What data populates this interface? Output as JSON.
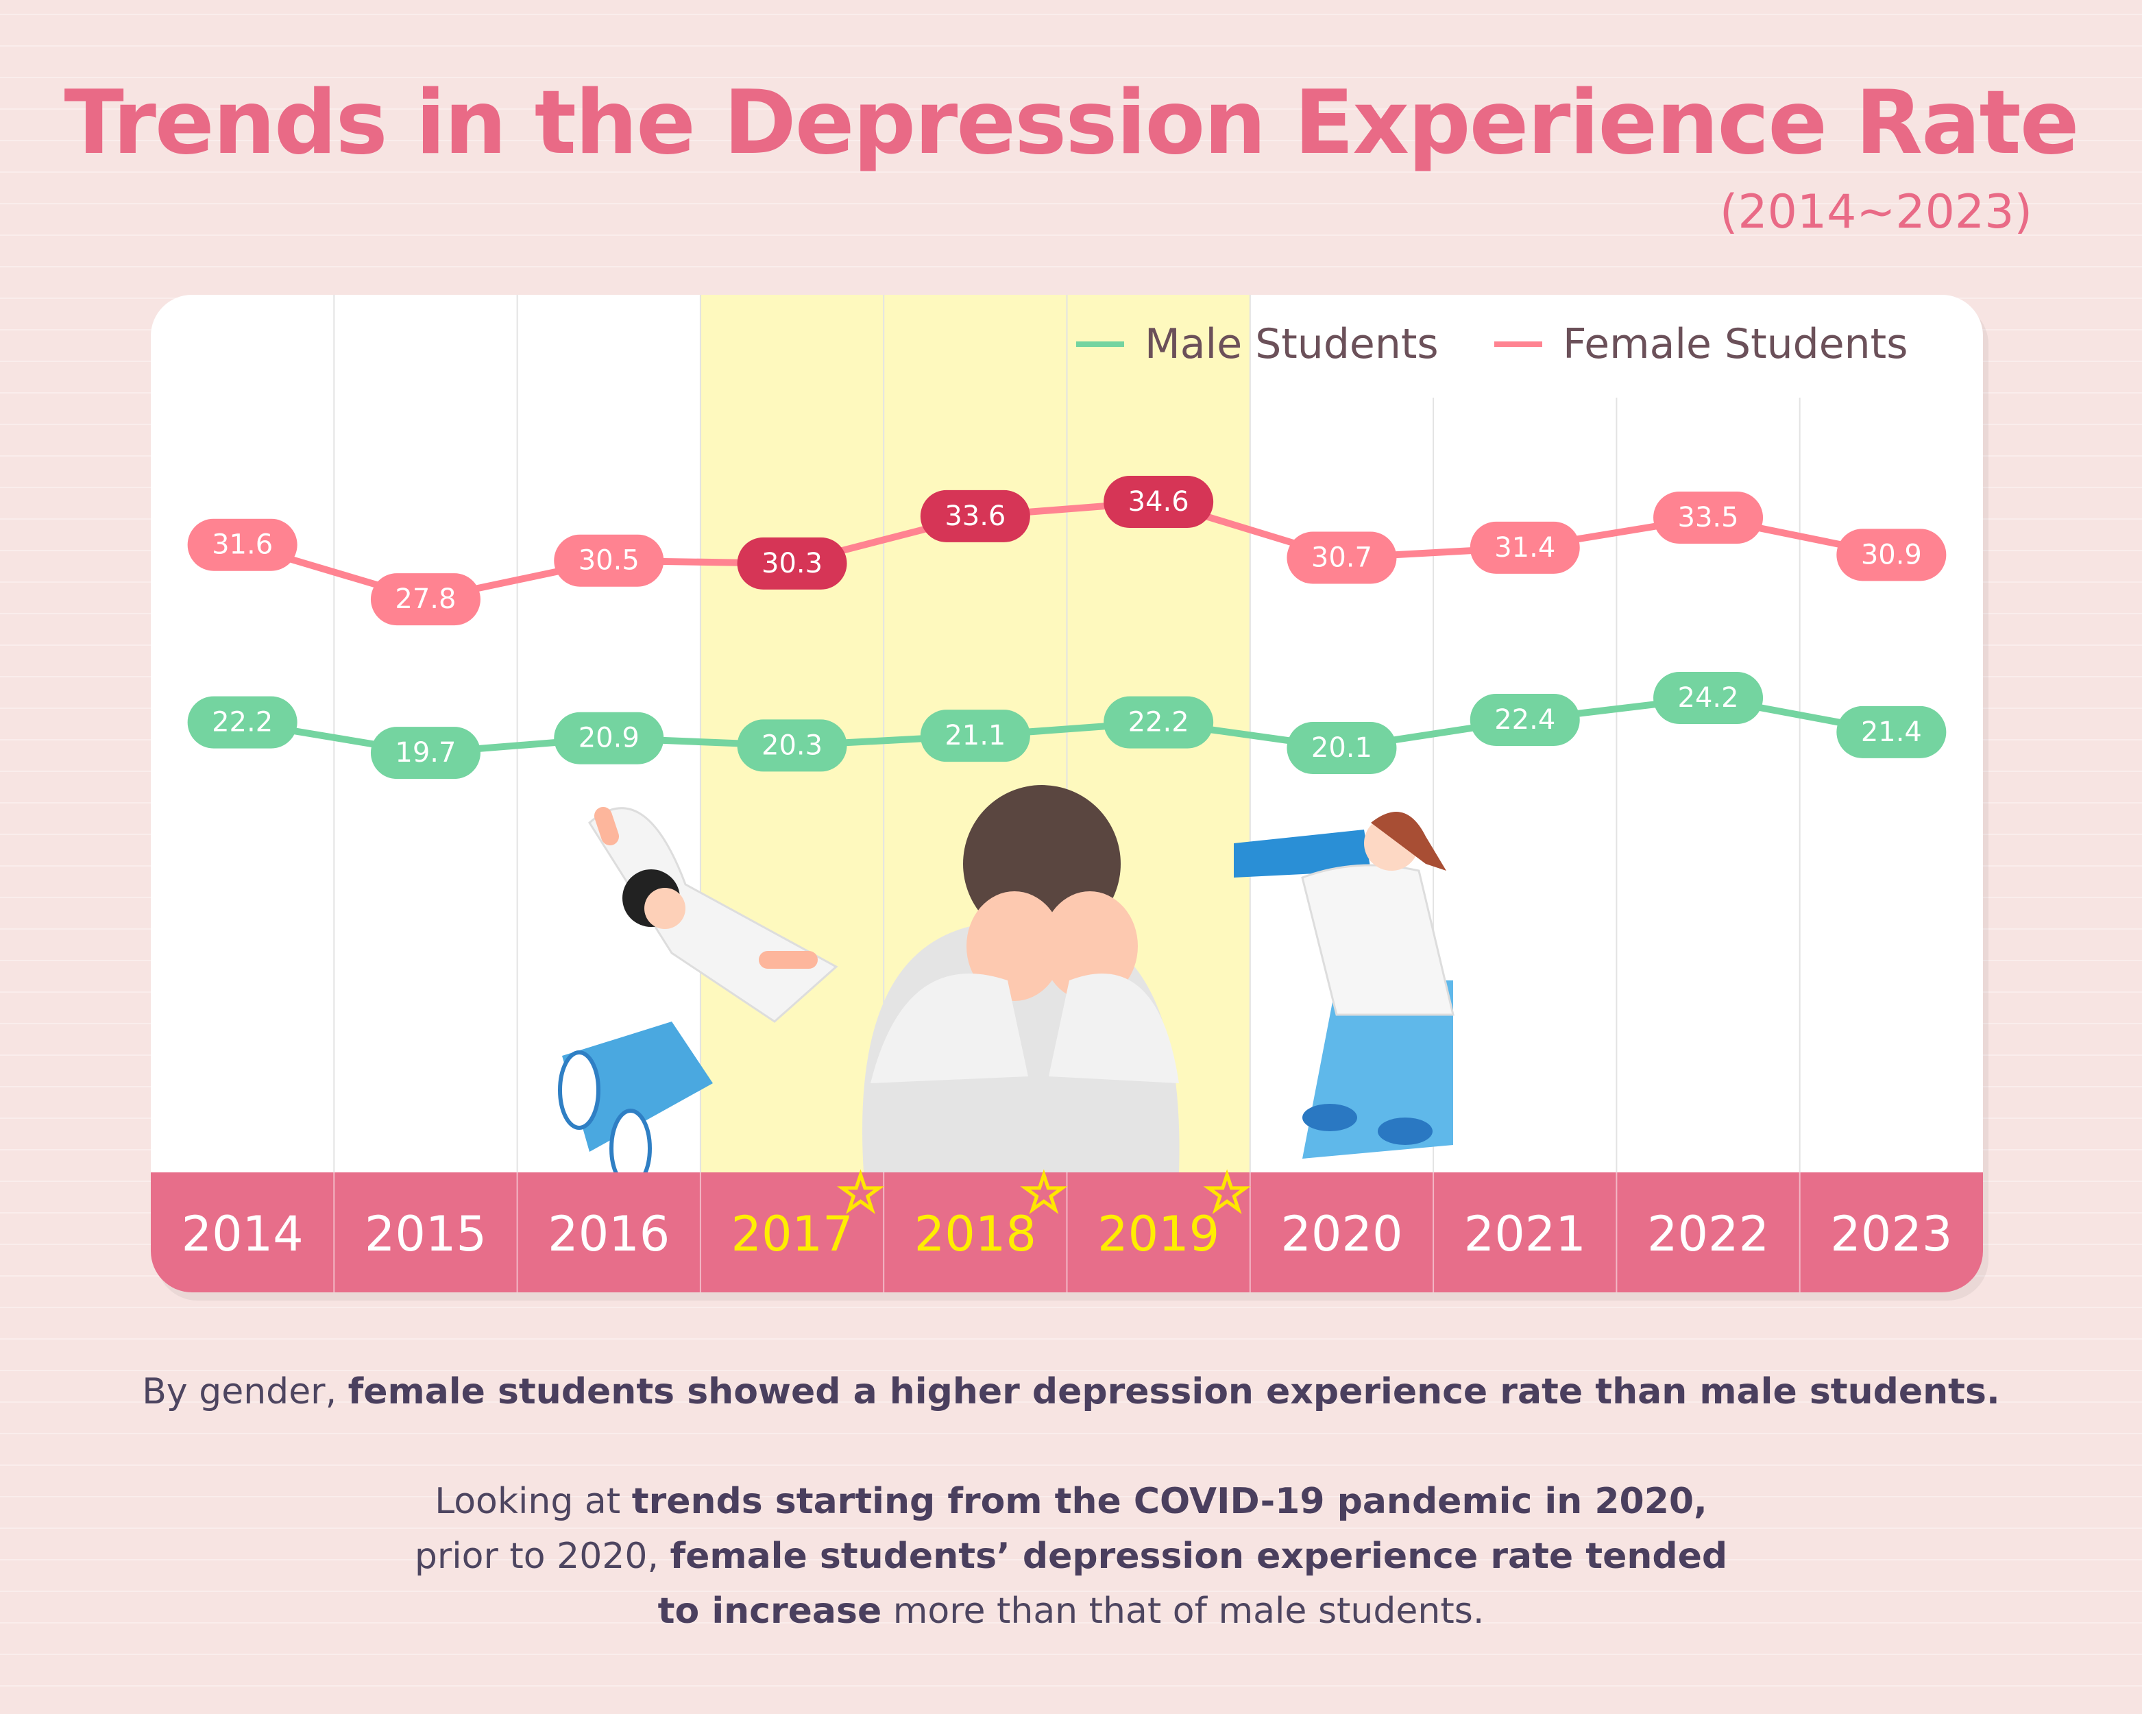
{
  "title": "Trends in the Depression Experience Rate",
  "subtitle": "(2014~2023)",
  "chart_data": {
    "type": "line",
    "title": "Trends in the Depression Experience Rate",
    "subtitle": "(2014~2023)",
    "categories": [
      "2014",
      "2015",
      "2016",
      "2017",
      "2018",
      "2019",
      "2020",
      "2021",
      "2022",
      "2023"
    ],
    "highlighted_categories": [
      "2017",
      "2018",
      "2019"
    ],
    "legend_position": "top-right",
    "series": [
      {
        "name": "Male Students",
        "color": "#74d4a0",
        "values": [
          22.2,
          19.7,
          20.9,
          20.3,
          21.1,
          22.2,
          20.1,
          22.4,
          24.2,
          21.4
        ]
      },
      {
        "name": "Female Students",
        "color": "#ff8391",
        "highlight_color": "#d63556",
        "values": [
          31.6,
          27.8,
          30.5,
          30.3,
          33.6,
          34.6,
          30.7,
          31.4,
          33.5,
          30.9
        ]
      }
    ],
    "grid": true
  },
  "notes": {
    "p1_normal": "By gender, ",
    "p1_bold": "female students showed a higher depression experience rate than male students.",
    "p2_l1_normal": "Looking at ",
    "p2_l1_bold": "trends starting from the COVID-19 pandemic in 2020,",
    "p2_l2_normal": "prior to 2020, ",
    "p2_l2_bold": "female students’ depression experience rate tended",
    "p2_l3_bold": "to increase",
    "p2_l3_normal": " more than that of male students."
  }
}
